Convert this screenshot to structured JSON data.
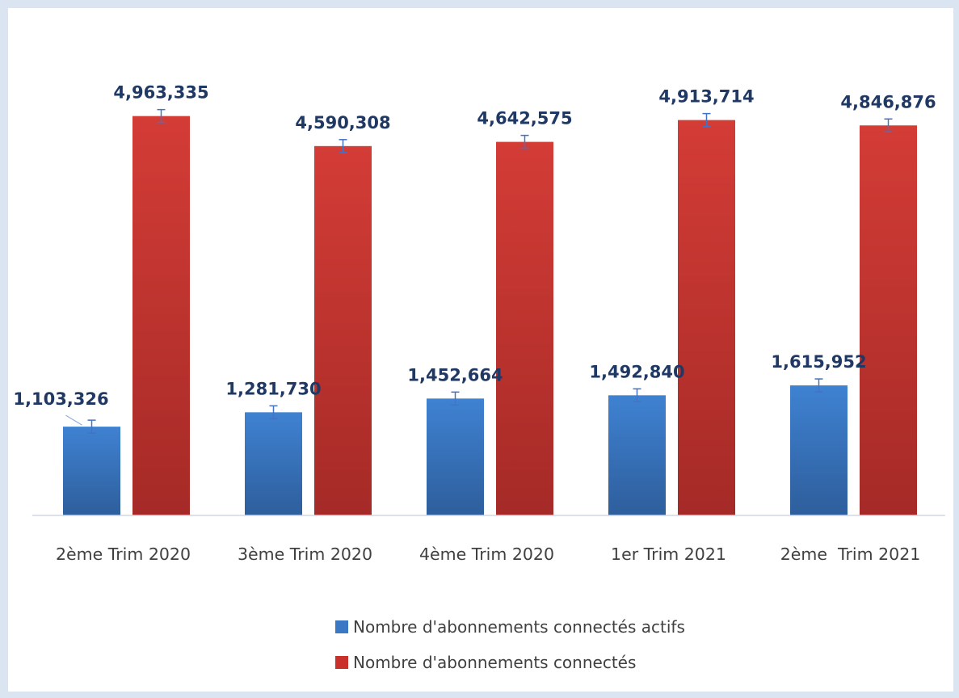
{
  "chart_data": {
    "type": "bar",
    "categories": [
      "2ème Trim 2020",
      "3ème Trim 2020",
      "4ème Trim 2020",
      "1er Trim 2021",
      "2ème  Trim 2021"
    ],
    "series": [
      {
        "name": "Nombre d'abonnements connectés actifs",
        "color": "#3a78c5",
        "values": [
          1103326,
          1281730,
          1452664,
          1492840,
          1615952
        ],
        "labels": [
          "1,103,326",
          "1,281,730",
          "1,452,664",
          "1,492,840",
          "1,615,952"
        ]
      },
      {
        "name": "Nombre d'abonnements connectés",
        "color": "#c9302c",
        "values": [
          4963335,
          4590308,
          4642575,
          4913714,
          4846876
        ],
        "labels": [
          "4,963,335",
          "4,590,308",
          "4,642,575",
          "4,913,714",
          "4,846,876"
        ]
      }
    ],
    "ylim": [
      0,
      5000000
    ],
    "error_bars": true,
    "legend_position": "bottom",
    "grid": false
  }
}
